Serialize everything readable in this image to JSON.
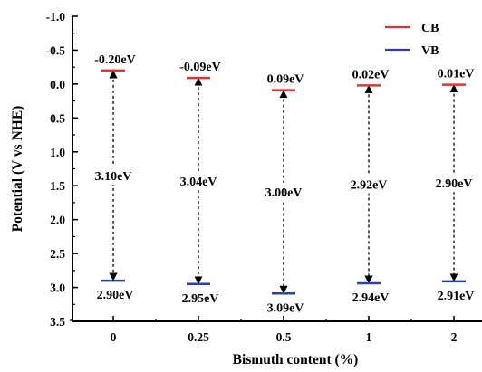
{
  "chart_data": {
    "type": "band-diagram",
    "categories": [
      "0",
      "0.25",
      "0.5",
      "1",
      "2"
    ],
    "xlabel": "Bismuth content (%)",
    "ylabel": "Potential (V vs NHE)",
    "ylim": [
      -1.0,
      3.5
    ],
    "y_inverted": true,
    "y_ticks": [
      "-1.0",
      "-0.5",
      "0.0",
      "0.5",
      "1.0",
      "1.5",
      "2.0",
      "2.5",
      "3.0",
      "3.5"
    ],
    "y_tick_values": [
      -1.0,
      -0.5,
      0.0,
      0.5,
      1.0,
      1.5,
      2.0,
      2.5,
      3.0,
      3.5
    ],
    "series": [
      {
        "name": "CB",
        "color": "#e8312f",
        "values": [
          -0.2,
          -0.09,
          0.09,
          0.02,
          0.01
        ],
        "labels": [
          "-0.20eV",
          "-0.09eV",
          "0.09eV",
          "0.02eV",
          "0.01eV"
        ]
      },
      {
        "name": "VB",
        "color": "#2a3fa8",
        "values": [
          2.9,
          2.95,
          3.09,
          2.94,
          2.91
        ],
        "labels": [
          "2.90eV",
          "2.95eV",
          "3.09eV",
          "2.94eV",
          "2.91eV"
        ]
      }
    ],
    "band_gap_labels": [
      "3.10eV",
      "3.04eV",
      "3.00eV",
      "2.92eV",
      "2.90eV"
    ],
    "legend": {
      "placement": "top-right",
      "entries": [
        "CB",
        "VB"
      ]
    },
    "grid": false
  }
}
